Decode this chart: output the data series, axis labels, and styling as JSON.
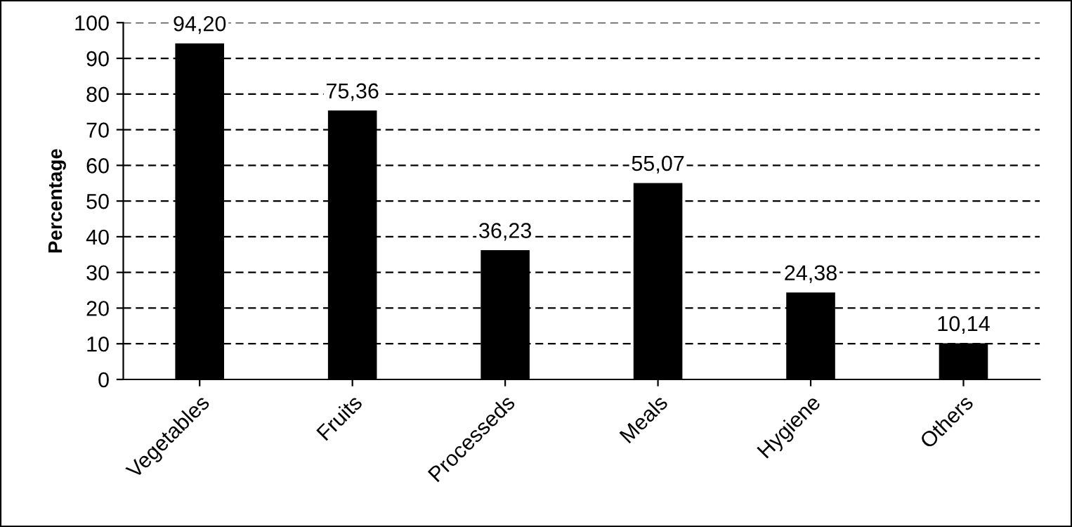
{
  "chart_data": {
    "type": "bar",
    "ylabel": "Percentage",
    "categories": [
      "Vegetables",
      "Fruits",
      "Processeds",
      "Meals",
      "Hygiene",
      "Others"
    ],
    "values": [
      94.2,
      75.36,
      36.23,
      55.07,
      24.38,
      10.14
    ],
    "value_labels": [
      "94,20",
      "75,36",
      "36,23",
      "55,07",
      "24,38",
      "10,14"
    ],
    "color": "#000000",
    "ylim": [
      0,
      100
    ],
    "yticks": [
      0,
      10,
      20,
      30,
      40,
      50,
      60,
      70,
      80,
      90,
      100
    ],
    "grid": "y",
    "line_style": "dashed"
  }
}
